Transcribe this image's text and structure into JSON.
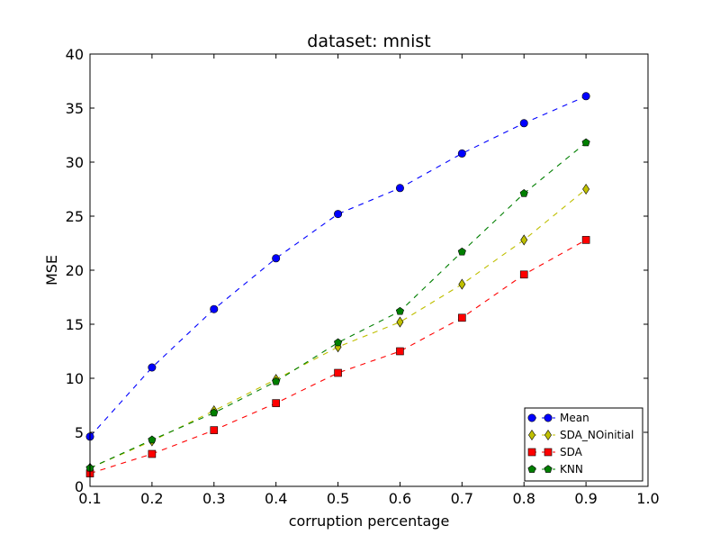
{
  "chart_data": {
    "type": "line",
    "title": "dataset: mnist",
    "xlabel": "corruption percentage",
    "ylabel": "MSE",
    "xlim": [
      0.1,
      1.0
    ],
    "ylim": [
      0,
      40
    ],
    "xticks": [
      "0.1",
      "0.2",
      "0.3",
      "0.4",
      "0.5",
      "0.6",
      "0.7",
      "0.8",
      "0.9",
      "1.0"
    ],
    "yticks": [
      "0",
      "5",
      "10",
      "15",
      "20",
      "25",
      "30",
      "35",
      "40"
    ],
    "grid": false,
    "legend_position": "lower-right",
    "x": [
      0.1,
      0.2,
      0.3,
      0.4,
      0.5,
      0.6,
      0.7,
      0.8,
      0.9
    ],
    "series": [
      {
        "name": "Mean",
        "color": "#0000ff",
        "marker": "circle",
        "values": [
          4.6,
          11.0,
          16.4,
          21.1,
          25.2,
          27.6,
          30.8,
          33.6,
          36.1
        ]
      },
      {
        "name": "SDA_NOinitial",
        "color": "#bfbf00",
        "marker": "diamond",
        "values": [
          1.7,
          4.2,
          7.0,
          9.9,
          12.9,
          15.2,
          18.7,
          22.8,
          27.5
        ]
      },
      {
        "name": "SDA",
        "color": "#ff0000",
        "marker": "square",
        "values": [
          1.2,
          3.0,
          5.2,
          7.7,
          10.5,
          12.5,
          15.6,
          19.6,
          22.8
        ]
      },
      {
        "name": "KNN",
        "color": "#007f00",
        "marker": "pentagon",
        "values": [
          1.7,
          4.3,
          6.8,
          9.7,
          13.3,
          16.2,
          21.7,
          27.1,
          31.8
        ]
      }
    ]
  }
}
